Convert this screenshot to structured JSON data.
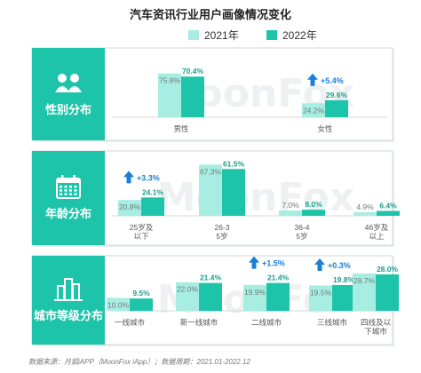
{
  "title": "汽车资讯行业用户画像情况变化",
  "legend": {
    "items": [
      {
        "label": "2021年",
        "color": "#a8ede2"
      },
      {
        "label": "2022年",
        "color": "#1ec4aa"
      }
    ]
  },
  "colors": {
    "panel_left": "#1ec4aa",
    "bar_2021": "#a8ede2",
    "bar_2022": "#1ec4aa",
    "arrow": "#1b7fd6",
    "panel_bg": "#ffffff",
    "panel_border": "#cfd8d6"
  },
  "watermark": "MoonFox",
  "chart_data": [
    {
      "type": "bar",
      "panel_label": "性别分布",
      "icon": "people-icon",
      "categories": [
        "男性",
        "女性"
      ],
      "series": [
        {
          "name": "2021年",
          "values": [
            75.8,
            24.2
          ],
          "labels": [
            "75.8%",
            "24.2%"
          ]
        },
        {
          "name": "2022年",
          "values": [
            70.4,
            29.6
          ],
          "labels": [
            "70.4%",
            "29.6%"
          ]
        }
      ],
      "annotations": [
        {
          "category_index": 1,
          "text": "+5.4%"
        }
      ],
      "ylim": [
        0,
        80
      ]
    },
    {
      "type": "bar",
      "panel_label": "年龄分布",
      "icon": "calendar-icon",
      "categories": [
        "25岁及以下",
        "26-35岁",
        "36-45岁",
        "46岁及以上"
      ],
      "series": [
        {
          "name": "2021年",
          "values": [
            20.8,
            67.3,
            7.0,
            4.9
          ],
          "labels": [
            "20.8%",
            "67.3%",
            "7.0%",
            "4.9%"
          ]
        },
        {
          "name": "2022年",
          "values": [
            24.1,
            61.5,
            8.0,
            6.4
          ],
          "labels": [
            "24.1%",
            "61.5%",
            "8.0%",
            "6.4%"
          ]
        }
      ],
      "annotations": [
        {
          "category_index": 0,
          "text": "+3.3%"
        }
      ],
      "ylim": [
        0,
        70
      ]
    },
    {
      "type": "bar",
      "panel_label": "城市等级分布",
      "icon": "city-buildings-icon",
      "categories": [
        "一线城市",
        "新一线城市",
        "二线城市",
        "三线城市",
        "四线及以下城市"
      ],
      "series": [
        {
          "name": "2021年",
          "values": [
            10.0,
            22.0,
            19.9,
            19.5,
            28.7
          ],
          "labels": [
            "10.0%",
            "22.0%",
            "19.9%",
            "19.5%",
            "28.7%"
          ]
        },
        {
          "name": "2022年",
          "values": [
            9.5,
            21.4,
            21.4,
            19.8,
            28.0
          ],
          "labels": [
            "9.5%",
            "21.4%",
            "21.4%",
            "19.8%",
            "28.0%"
          ]
        }
      ],
      "annotations": [
        {
          "category_index": 2,
          "text": "+1.5%"
        },
        {
          "category_index": 3,
          "text": "+0.3%"
        }
      ],
      "ylim": [
        0,
        30
      ]
    }
  ],
  "footer": "数据来源：月狐iAPP（MoonFox iApp）；数据周期：2021.01-2022.12"
}
